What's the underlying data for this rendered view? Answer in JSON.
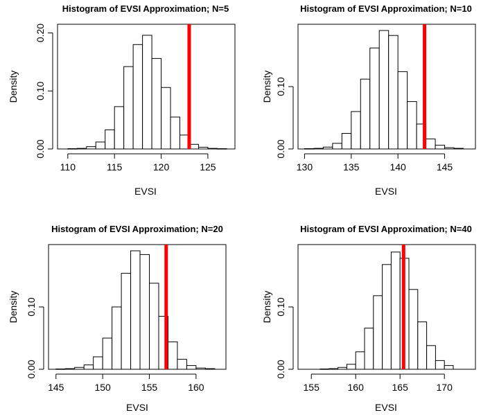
{
  "figure": {
    "background": "#ffffff",
    "bar_fill": "#ffffff",
    "bar_stroke": "#000000",
    "marker_color": "#ff0000"
  },
  "chart_data": [
    {
      "type": "bar",
      "title": "Histogram of EVSI Approximation; N=5",
      "xlabel": "EVSI",
      "ylabel": "Density",
      "xlim": [
        108.9,
        127.9
      ],
      "ylim": [
        0,
        0.215
      ],
      "xticks": [
        110,
        115,
        120,
        125
      ],
      "yticks": [
        0.0,
        0.1,
        0.2
      ],
      "yticklabels": [
        "0.00",
        "0.10",
        "0.20"
      ],
      "bin_start": 110,
      "bin_width": 1,
      "values": [
        0.0005,
        0.001,
        0.004,
        0.012,
        0.033,
        0.073,
        0.142,
        0.18,
        0.196,
        0.156,
        0.106,
        0.055,
        0.024,
        0.008,
        0.003,
        0.001,
        0.0005
      ],
      "vline": 123.0
    },
    {
      "type": "bar",
      "title": "Histogram of EVSI Approximation; N=10",
      "xlabel": "EVSI",
      "ylabel": "Density",
      "xlim": [
        129.3,
        148.3
      ],
      "ylim": [
        0,
        0.2
      ],
      "xticks": [
        130,
        135,
        140,
        145
      ],
      "yticks": [
        0.0,
        0.1
      ],
      "yticklabels": [
        "0.00",
        "0.10"
      ],
      "bin_start": 130,
      "bin_width": 1,
      "values": [
        0.0005,
        0.001,
        0.003,
        0.009,
        0.025,
        0.06,
        0.112,
        0.162,
        0.19,
        0.182,
        0.124,
        0.076,
        0.04,
        0.016,
        0.006,
        0.002,
        0.001
      ],
      "vline": 142.85
    },
    {
      "type": "bar",
      "title": "Histogram of EVSI Approximation; N=20",
      "xlabel": "EVSI",
      "ylabel": "Density",
      "xlim": [
        144.2,
        163.2
      ],
      "ylim": [
        0,
        0.2
      ],
      "xticks": [
        145,
        150,
        155,
        160
      ],
      "yticks": [
        0.0,
        0.1
      ],
      "yticklabels": [
        "0.00",
        "0.10"
      ],
      "bin_start": 145,
      "bin_width": 1,
      "values": [
        0.0005,
        0.001,
        0.003,
        0.007,
        0.02,
        0.05,
        0.1,
        0.154,
        0.19,
        0.184,
        0.138,
        0.085,
        0.044,
        0.016,
        0.006,
        0.002,
        0.001
      ],
      "vline": 156.8
    },
    {
      "type": "bar",
      "title": "Histogram of EVSI Approximation; N=40",
      "xlabel": "EVSI",
      "ylabel": "Density",
      "xlim": [
        153.5,
        173.5
      ],
      "ylim": [
        0,
        0.2
      ],
      "xticks": [
        155,
        160,
        165,
        170
      ],
      "yticks": [
        0.0,
        0.1
      ],
      "yticklabels": [
        "0.00",
        "0.10"
      ],
      "bin_start": 156,
      "bin_width": 1,
      "values": [
        0.0005,
        0.001,
        0.003,
        0.008,
        0.028,
        0.066,
        0.118,
        0.168,
        0.188,
        0.178,
        0.128,
        0.076,
        0.038,
        0.014,
        0.006
      ],
      "vline": 165.4
    }
  ]
}
